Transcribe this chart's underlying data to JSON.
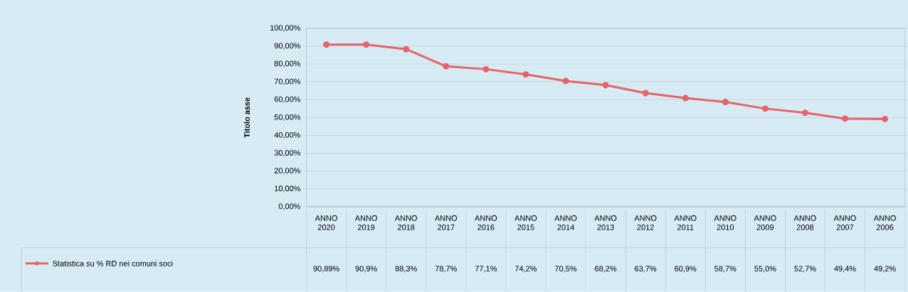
{
  "chart_data": {
    "type": "line",
    "ylabel": "Titolo asse",
    "categories": [
      "ANNO 2020",
      "ANNO 2019",
      "ANNO 2018",
      "ANNO 2017",
      "ANNO 2016",
      "ANNO 2015",
      "ANNO 2014",
      "ANNO 2013",
      "ANNO 2012",
      "ANNO 2011",
      "ANNO 2010",
      "ANNO 2009",
      "ANNO 2008",
      "ANNO 2007",
      "ANNO 2006"
    ],
    "series": [
      {
        "name": "Statistica su % RD nei comuni soci",
        "color": "#e8636a",
        "values": [
          90.89,
          90.9,
          88.3,
          78.7,
          77.1,
          74.2,
          70.5,
          68.2,
          63.7,
          60.9,
          58.7,
          55.0,
          52.7,
          49.4,
          49.2
        ],
        "value_labels": [
          "90,89%",
          "90,9%",
          "88,3%",
          "78,7%",
          "77,1%",
          "74,2%",
          "70,5%",
          "68,2%",
          "63,7%",
          "60,9%",
          "58,7%",
          "55,0%",
          "52,7%",
          "49,4%",
          "49,2%"
        ]
      }
    ],
    "ylim": [
      0,
      100
    ],
    "yticks": [
      {
        "value": 0,
        "label": "0,00%"
      },
      {
        "value": 10,
        "label": "10,00%"
      },
      {
        "value": 20,
        "label": "20,00%"
      },
      {
        "value": 30,
        "label": "30,00%"
      },
      {
        "value": 40,
        "label": "40,00%"
      },
      {
        "value": 50,
        "label": "50,00%"
      },
      {
        "value": 60,
        "label": "60,00%"
      },
      {
        "value": 70,
        "label": "70,00%"
      },
      {
        "value": 80,
        "label": "80,00%"
      },
      {
        "value": 90,
        "label": "90,00%"
      },
      {
        "value": 100,
        "label": "100,00%"
      }
    ],
    "grid": "y",
    "legend": "bottom left",
    "marker": "circle",
    "line_style": "solid"
  }
}
